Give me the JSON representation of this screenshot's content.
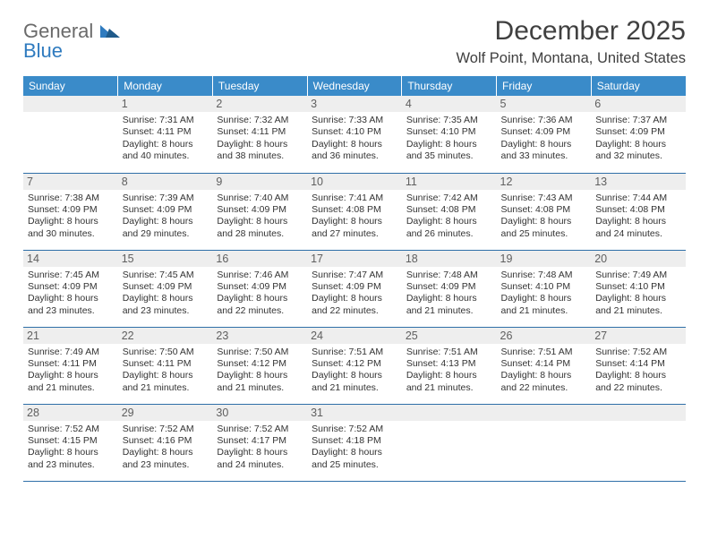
{
  "logo": {
    "general": "General",
    "blue": "Blue"
  },
  "title": "December 2025",
  "location": "Wolf Point, Montana, United States",
  "colors": {
    "header_bg": "#3a8bc9",
    "header_text": "#ffffff",
    "daynum_bg": "#eeeeee",
    "daynum_text": "#5f5f5f",
    "cell_text": "#333333",
    "row_border": "#2f6fa8",
    "logo_gray": "#6a6a6a",
    "logo_blue": "#2f7bbf",
    "page_bg": "#ffffff"
  },
  "day_headers": [
    "Sunday",
    "Monday",
    "Tuesday",
    "Wednesday",
    "Thursday",
    "Friday",
    "Saturday"
  ],
  "weeks": [
    [
      {
        "n": "",
        "lines": []
      },
      {
        "n": "1",
        "lines": [
          "Sunrise: 7:31 AM",
          "Sunset: 4:11 PM",
          "Daylight: 8 hours",
          "and 40 minutes."
        ]
      },
      {
        "n": "2",
        "lines": [
          "Sunrise: 7:32 AM",
          "Sunset: 4:11 PM",
          "Daylight: 8 hours",
          "and 38 minutes."
        ]
      },
      {
        "n": "3",
        "lines": [
          "Sunrise: 7:33 AM",
          "Sunset: 4:10 PM",
          "Daylight: 8 hours",
          "and 36 minutes."
        ]
      },
      {
        "n": "4",
        "lines": [
          "Sunrise: 7:35 AM",
          "Sunset: 4:10 PM",
          "Daylight: 8 hours",
          "and 35 minutes."
        ]
      },
      {
        "n": "5",
        "lines": [
          "Sunrise: 7:36 AM",
          "Sunset: 4:09 PM",
          "Daylight: 8 hours",
          "and 33 minutes."
        ]
      },
      {
        "n": "6",
        "lines": [
          "Sunrise: 7:37 AM",
          "Sunset: 4:09 PM",
          "Daylight: 8 hours",
          "and 32 minutes."
        ]
      }
    ],
    [
      {
        "n": "7",
        "lines": [
          "Sunrise: 7:38 AM",
          "Sunset: 4:09 PM",
          "Daylight: 8 hours",
          "and 30 minutes."
        ]
      },
      {
        "n": "8",
        "lines": [
          "Sunrise: 7:39 AM",
          "Sunset: 4:09 PM",
          "Daylight: 8 hours",
          "and 29 minutes."
        ]
      },
      {
        "n": "9",
        "lines": [
          "Sunrise: 7:40 AM",
          "Sunset: 4:09 PM",
          "Daylight: 8 hours",
          "and 28 minutes."
        ]
      },
      {
        "n": "10",
        "lines": [
          "Sunrise: 7:41 AM",
          "Sunset: 4:08 PM",
          "Daylight: 8 hours",
          "and 27 minutes."
        ]
      },
      {
        "n": "11",
        "lines": [
          "Sunrise: 7:42 AM",
          "Sunset: 4:08 PM",
          "Daylight: 8 hours",
          "and 26 minutes."
        ]
      },
      {
        "n": "12",
        "lines": [
          "Sunrise: 7:43 AM",
          "Sunset: 4:08 PM",
          "Daylight: 8 hours",
          "and 25 minutes."
        ]
      },
      {
        "n": "13",
        "lines": [
          "Sunrise: 7:44 AM",
          "Sunset: 4:08 PM",
          "Daylight: 8 hours",
          "and 24 minutes."
        ]
      }
    ],
    [
      {
        "n": "14",
        "lines": [
          "Sunrise: 7:45 AM",
          "Sunset: 4:09 PM",
          "Daylight: 8 hours",
          "and 23 minutes."
        ]
      },
      {
        "n": "15",
        "lines": [
          "Sunrise: 7:45 AM",
          "Sunset: 4:09 PM",
          "Daylight: 8 hours",
          "and 23 minutes."
        ]
      },
      {
        "n": "16",
        "lines": [
          "Sunrise: 7:46 AM",
          "Sunset: 4:09 PM",
          "Daylight: 8 hours",
          "and 22 minutes."
        ]
      },
      {
        "n": "17",
        "lines": [
          "Sunrise: 7:47 AM",
          "Sunset: 4:09 PM",
          "Daylight: 8 hours",
          "and 22 minutes."
        ]
      },
      {
        "n": "18",
        "lines": [
          "Sunrise: 7:48 AM",
          "Sunset: 4:09 PM",
          "Daylight: 8 hours",
          "and 21 minutes."
        ]
      },
      {
        "n": "19",
        "lines": [
          "Sunrise: 7:48 AM",
          "Sunset: 4:10 PM",
          "Daylight: 8 hours",
          "and 21 minutes."
        ]
      },
      {
        "n": "20",
        "lines": [
          "Sunrise: 7:49 AM",
          "Sunset: 4:10 PM",
          "Daylight: 8 hours",
          "and 21 minutes."
        ]
      }
    ],
    [
      {
        "n": "21",
        "lines": [
          "Sunrise: 7:49 AM",
          "Sunset: 4:11 PM",
          "Daylight: 8 hours",
          "and 21 minutes."
        ]
      },
      {
        "n": "22",
        "lines": [
          "Sunrise: 7:50 AM",
          "Sunset: 4:11 PM",
          "Daylight: 8 hours",
          "and 21 minutes."
        ]
      },
      {
        "n": "23",
        "lines": [
          "Sunrise: 7:50 AM",
          "Sunset: 4:12 PM",
          "Daylight: 8 hours",
          "and 21 minutes."
        ]
      },
      {
        "n": "24",
        "lines": [
          "Sunrise: 7:51 AM",
          "Sunset: 4:12 PM",
          "Daylight: 8 hours",
          "and 21 minutes."
        ]
      },
      {
        "n": "25",
        "lines": [
          "Sunrise: 7:51 AM",
          "Sunset: 4:13 PM",
          "Daylight: 8 hours",
          "and 21 minutes."
        ]
      },
      {
        "n": "26",
        "lines": [
          "Sunrise: 7:51 AM",
          "Sunset: 4:14 PM",
          "Daylight: 8 hours",
          "and 22 minutes."
        ]
      },
      {
        "n": "27",
        "lines": [
          "Sunrise: 7:52 AM",
          "Sunset: 4:14 PM",
          "Daylight: 8 hours",
          "and 22 minutes."
        ]
      }
    ],
    [
      {
        "n": "28",
        "lines": [
          "Sunrise: 7:52 AM",
          "Sunset: 4:15 PM",
          "Daylight: 8 hours",
          "and 23 minutes."
        ]
      },
      {
        "n": "29",
        "lines": [
          "Sunrise: 7:52 AM",
          "Sunset: 4:16 PM",
          "Daylight: 8 hours",
          "and 23 minutes."
        ]
      },
      {
        "n": "30",
        "lines": [
          "Sunrise: 7:52 AM",
          "Sunset: 4:17 PM",
          "Daylight: 8 hours",
          "and 24 minutes."
        ]
      },
      {
        "n": "31",
        "lines": [
          "Sunrise: 7:52 AM",
          "Sunset: 4:18 PM",
          "Daylight: 8 hours",
          "and 25 minutes."
        ]
      },
      {
        "n": "",
        "lines": []
      },
      {
        "n": "",
        "lines": []
      },
      {
        "n": "",
        "lines": []
      }
    ]
  ]
}
